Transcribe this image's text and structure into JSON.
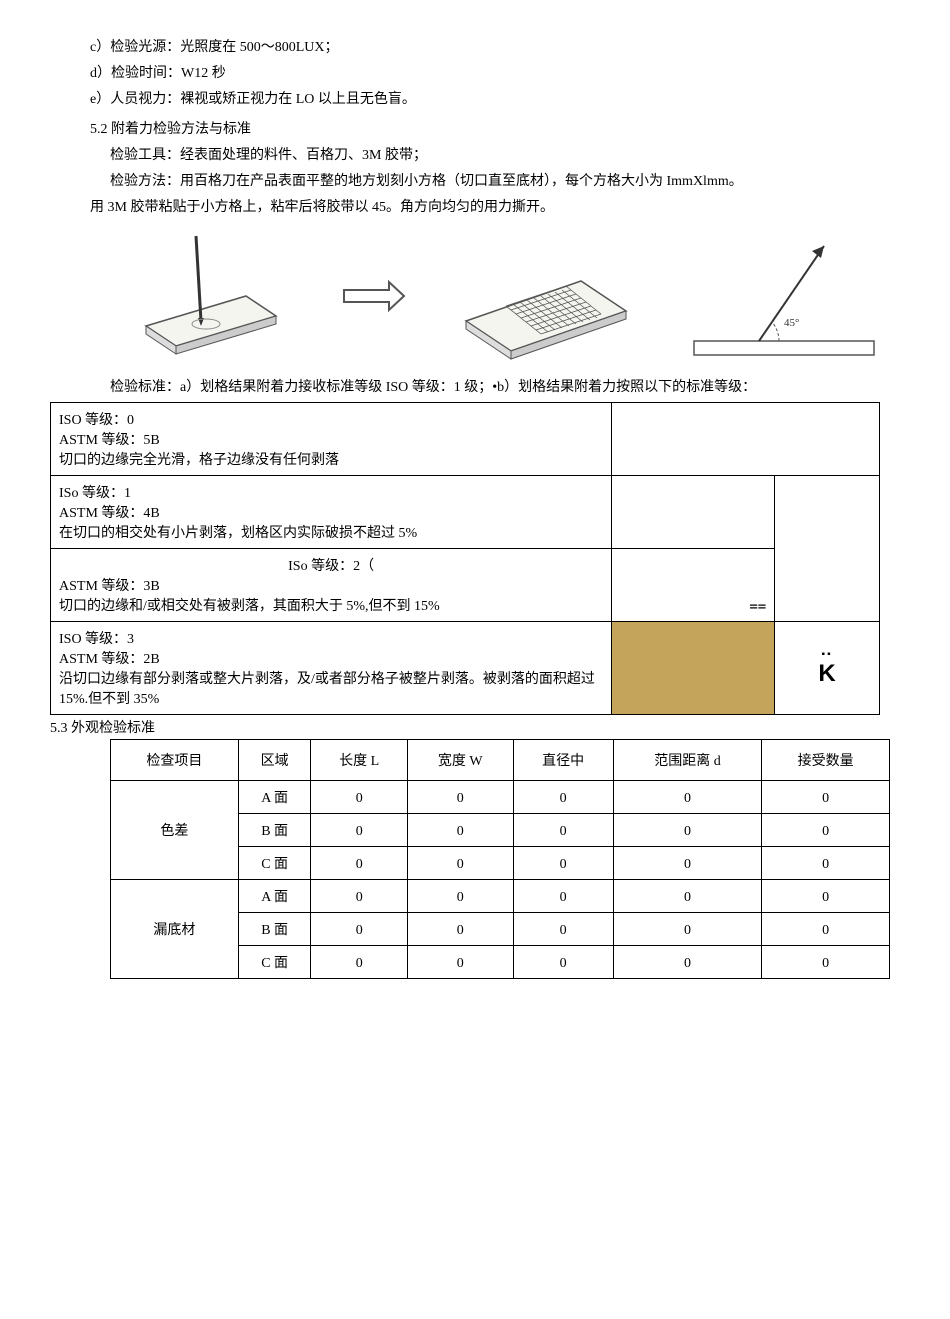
{
  "lines": {
    "c": "c）检验光源：光照度在 500〜800LUX；",
    "d": "d）检验时间：W12 秒",
    "e": "e）人员视力：裸视或矫正视力在 LO 以上且无色盲。",
    "h52": "5.2 附着力检验方法与标准",
    "tool": "检验工具：经表面处理的料件、百格刀、3M 胶带；",
    "method": "检验方法：用百格刀在产品表面平整的地方划刻小方格（切口直至底材），每个方格大小为 ImmXlmm。",
    "tape": "用 3M 胶带粘贴于小方格上，粘牢后将胶带以 45。角方向均匀的用力撕开。",
    "std": "检验标准：a）划格结果附着力接收标准等级 ISO 等级：1 级；•b）划格结果附着力按照以下的标准等级：",
    "h53": "5.3 外观检验标准"
  },
  "angle_label": "45°",
  "iso_rows": [
    {
      "text": "ISO 等级：0\nASTM 等级：5B\n切口的边缘完全光滑，格子边缘没有任何剥落",
      "img_cells": 1
    },
    {
      "text": "ISo 等级：1\nASTM 等级：4B\n在切口的相交处有小片剥落，划格区内实际破损不超过 5%",
      "img_cells": 2
    },
    {
      "text_center": "ISo 等级：2（",
      "text": "ASTM 等级：3B\n切口的边缘和/或相交处有被剥落，其面积大于 5%,但不到 15%",
      "img_cells": 2,
      "last_mark": "=="
    },
    {
      "text": "ISO 等级：3\nASTM 等级：2B\n沿切口边缘有部分剥落或整大片剥落，及/或者部分格子被整片剥落。被剥落的面积超过 15%.但不到 35%",
      "img_cells": 2,
      "gold": true,
      "k": "K",
      "dots": "▪▪"
    }
  ],
  "outer": {
    "headers": [
      "检查项目",
      "区域",
      "长度 L",
      "宽度 W",
      "直径中",
      "范围距离 d",
      "接受数量"
    ],
    "groups": [
      {
        "item": "色差",
        "rows": [
          {
            "zone": "A 面",
            "v": [
              "0",
              "0",
              "0",
              "0",
              "0"
            ]
          },
          {
            "zone": "B 面",
            "v": [
              "0",
              "0",
              "0",
              "0",
              "0"
            ]
          },
          {
            "zone": "C 面",
            "v": [
              "0",
              "0",
              "0",
              "0",
              "0"
            ]
          }
        ]
      },
      {
        "item": "漏底材",
        "rows": [
          {
            "zone": "A 面",
            "v": [
              "0",
              "0",
              "0",
              "0",
              "0"
            ]
          },
          {
            "zone": "B 面",
            "v": [
              "0",
              "0",
              "0",
              "0",
              "0"
            ]
          },
          {
            "zone": "C 面",
            "v": [
              "0",
              "0",
              "0",
              "0",
              "0"
            ]
          }
        ]
      }
    ]
  },
  "colors": {
    "gold": "#c4a35a",
    "grid_stroke": "#555",
    "arrow_stroke": "#333"
  }
}
